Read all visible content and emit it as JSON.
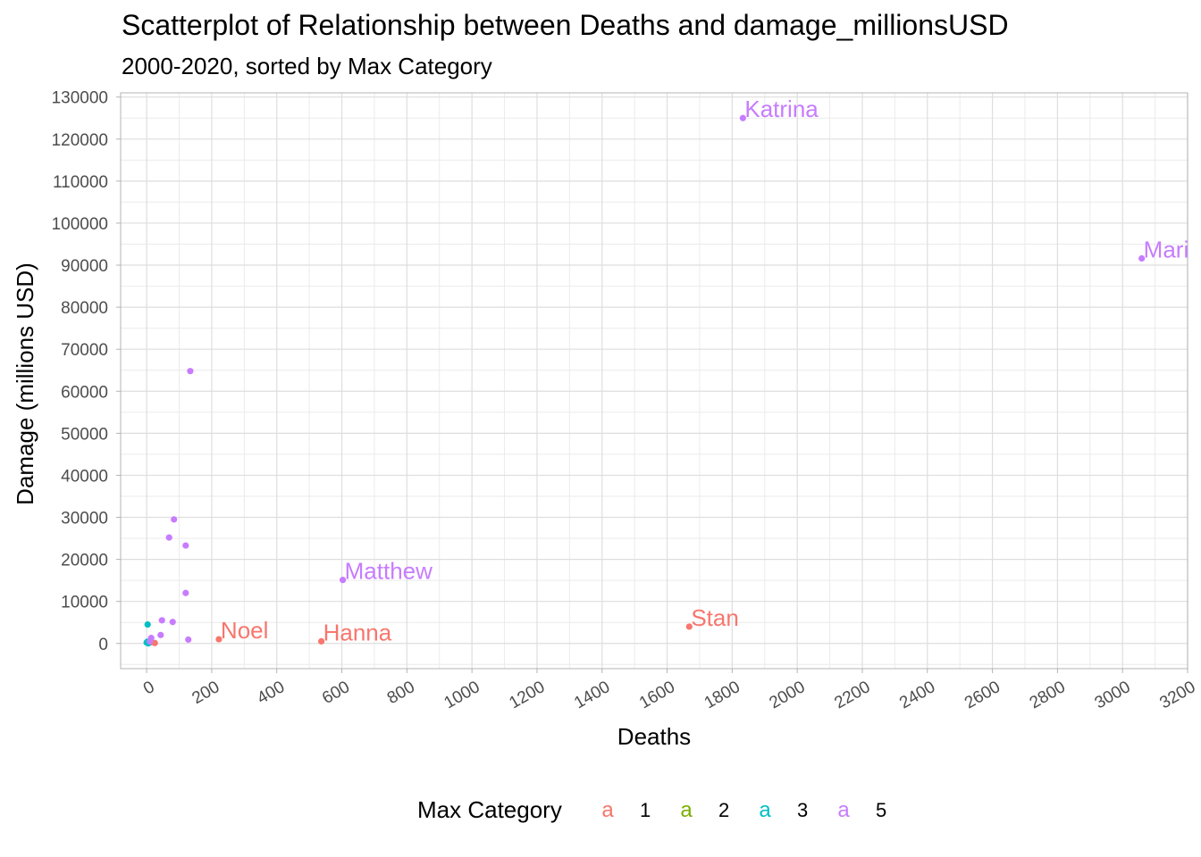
{
  "chart_data": {
    "type": "scatter",
    "title": "Scatterplot of Relationship between Deaths and damage_millionsUSD",
    "subtitle": "2000-2020, sorted by Max Category",
    "xlabel": "Deaths",
    "ylabel": "Damage (millions USD)",
    "xlim": [
      -80,
      3200
    ],
    "ylim": [
      -6000,
      131000
    ],
    "x_ticks": [
      0,
      200,
      400,
      600,
      800,
      1000,
      1200,
      1400,
      1600,
      1800,
      2000,
      2200,
      2400,
      2600,
      2800,
      3000,
      3200
    ],
    "y_ticks": [
      0,
      10000,
      20000,
      30000,
      40000,
      50000,
      60000,
      70000,
      80000,
      90000,
      100000,
      110000,
      120000,
      130000
    ],
    "grid": true,
    "legend": {
      "title": "Max Category",
      "position": "bottom",
      "key_glyph": "a",
      "entries": [
        {
          "label": "1",
          "color": "#F8766D"
        },
        {
          "label": "2",
          "color": "#7CAE00"
        },
        {
          "label": "3",
          "color": "#00BFC4"
        },
        {
          "label": "5",
          "color": "#C77CFF"
        }
      ]
    },
    "series": [
      {
        "name": "1",
        "color": "#F8766D",
        "points": [
          {
            "x": 222,
            "y": 1000,
            "label": "Noel"
          },
          {
            "x": 537,
            "y": 500,
            "label": "Hanna"
          },
          {
            "x": 1668,
            "y": 4000,
            "label": "Stan"
          },
          {
            "x": 15,
            "y": 300
          },
          {
            "x": 25,
            "y": 100
          }
        ]
      },
      {
        "name": "2",
        "color": "#7CAE00",
        "points": [
          {
            "x": 5,
            "y": 200
          }
        ]
      },
      {
        "name": "3",
        "color": "#00BFC4",
        "points": [
          {
            "x": 3,
            "y": 4500
          },
          {
            "x": 0,
            "y": 200
          },
          {
            "x": 5,
            "y": 0
          },
          {
            "x": 2,
            "y": 400
          }
        ]
      },
      {
        "name": "5",
        "color": "#C77CFF",
        "points": [
          {
            "x": 1833,
            "y": 125000,
            "label": "Katrina"
          },
          {
            "x": 3059,
            "y": 91600,
            "label": "Mari"
          },
          {
            "x": 603,
            "y": 15100,
            "label": "Matthew"
          },
          {
            "x": 134,
            "y": 64800
          },
          {
            "x": 84,
            "y": 29500
          },
          {
            "x": 69,
            "y": 25200
          },
          {
            "x": 120,
            "y": 23300
          },
          {
            "x": 120,
            "y": 12000
          },
          {
            "x": 47,
            "y": 5500
          },
          {
            "x": 80,
            "y": 5100
          },
          {
            "x": 43,
            "y": 2000
          },
          {
            "x": 128,
            "y": 900
          },
          {
            "x": 14,
            "y": 1300
          },
          {
            "x": 10,
            "y": 500
          }
        ]
      }
    ]
  }
}
